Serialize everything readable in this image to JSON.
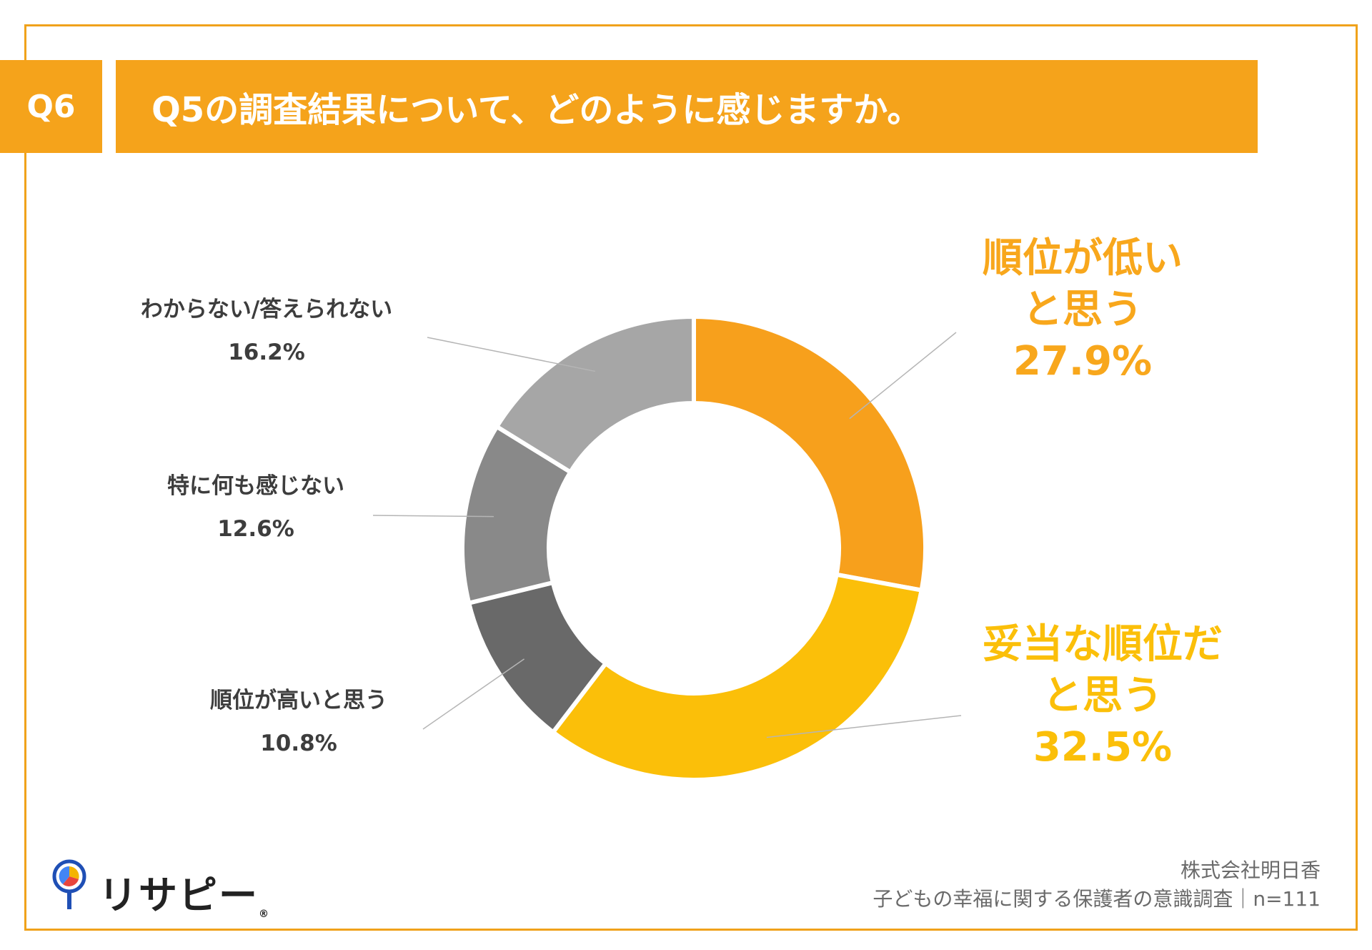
{
  "header": {
    "badge": "Q6",
    "title": "Q5の調査結果について、どのように感じますか。"
  },
  "colors": {
    "accent": "#f5a31b",
    "frame": "#f0a21b",
    "highlight_text": "#f8a71c"
  },
  "chart_data": {
    "type": "pie",
    "donut": true,
    "start": "top",
    "direction": "clockwise",
    "unit": "%",
    "slices": [
      {
        "label": "順位が低いと思う",
        "label_lines": [
          "順位が低い",
          "と思う"
        ],
        "value": 27.9,
        "value_text": "27.9%",
        "color": "#f7a01c",
        "label_color": "#f8a71c"
      },
      {
        "label": "妥当な順位だと思う",
        "label_lines": [
          "妥当な順位だ",
          "と思う"
        ],
        "value": 32.5,
        "value_text": "32.5%",
        "color": "#fbbf09",
        "label_color": "#fbbf09"
      },
      {
        "label": "順位が高いと思う",
        "label_lines": [
          "順位が高いと思う"
        ],
        "value": 10.8,
        "value_text": "10.8%",
        "color": "#696969",
        "label_color": "#3d3d3d"
      },
      {
        "label": "特に何も感じない",
        "label_lines": [
          "特に何も感じない"
        ],
        "value": 12.6,
        "value_text": "12.6%",
        "color": "#898989",
        "label_color": "#3d3d3d"
      },
      {
        "label": "わからない/答えられない",
        "label_lines": [
          "わからない/答えられない"
        ],
        "value": 16.2,
        "value_text": "16.2%",
        "color": "#a6a6a6",
        "label_color": "#3d3d3d"
      }
    ]
  },
  "footer": {
    "company": "株式会社明日香",
    "survey": "子どもの幸福に関する保護者の意識調査｜n=111"
  },
  "logo": {
    "text": "リサピー",
    "mark": "®"
  }
}
